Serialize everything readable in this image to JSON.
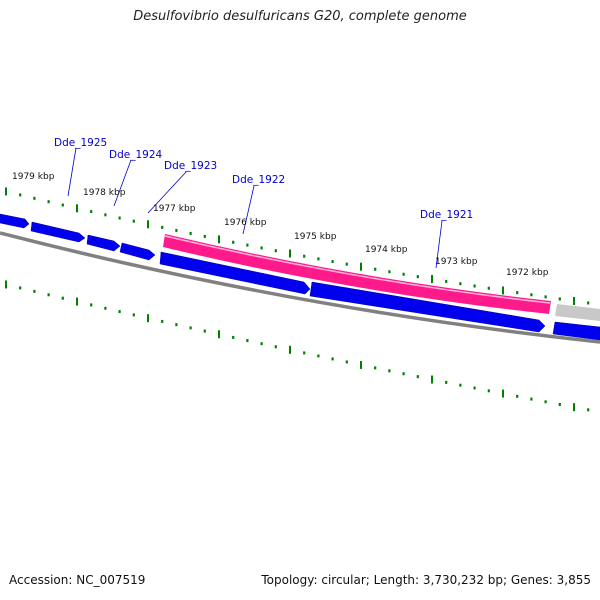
{
  "title": "Desulfovibrio desulfuricans G20, complete genome",
  "footer": {
    "accession": "Accession: NC_007519",
    "summary": "Topology: circular; Length: 3,730,232 bp; Genes: 3,855"
  },
  "ruler_labels": [
    "1979 kbp",
    "1978 kbp",
    "1977 kbp",
    "1976 kbp",
    "1975 kbp",
    "1974 kbp",
    "1973 kbp",
    "1972 kbp"
  ],
  "gene_labels": [
    "Dde_1925",
    "Dde_1924",
    "Dde_1923",
    "Dde_1922",
    "Dde_1921"
  ],
  "colors": {
    "forward_gene": "#0000ee",
    "reverse_gene": "#0000ee",
    "highlighted_gene": "#ff1a8c",
    "partial_gene": "#c8c8c8",
    "backbone": "#808080",
    "tick": "#008000",
    "gene_label": "#0000cc"
  }
}
